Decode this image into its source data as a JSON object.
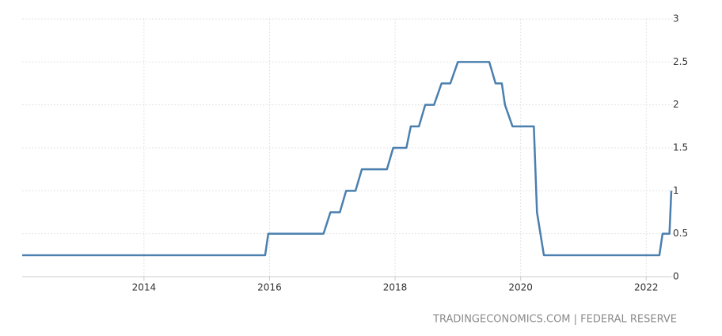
{
  "chart_data": {
    "type": "line",
    "source": "TRADINGECONOMICS.COM | FEDERAL RESERVE",
    "x": [
      2012.06,
      2015.93,
      2015.98,
      2016.86,
      2016.97,
      2017.12,
      2017.22,
      2017.37,
      2017.47,
      2017.87,
      2017.97,
      2018.18,
      2018.25,
      2018.38,
      2018.48,
      2018.62,
      2018.74,
      2018.88,
      2019.0,
      2019.5,
      2019.6,
      2019.7,
      2019.75,
      2019.87,
      2020.21,
      2020.26,
      2020.37,
      2022.21,
      2022.26,
      2022.37,
      2022.4
    ],
    "values": [
      0.25,
      0.25,
      0.5,
      0.5,
      0.75,
      0.75,
      1,
      1,
      1.25,
      1.25,
      1.5,
      1.5,
      1.75,
      1.75,
      2,
      2,
      2.25,
      2.25,
      2.5,
      2.5,
      2.25,
      2.25,
      2,
      1.75,
      1.75,
      0.75,
      0.25,
      0.25,
      0.5,
      0.5,
      1
    ],
    "color": "#4a7fae",
    "xlim": [
      2012.06,
      2022.4
    ],
    "xticks": [
      2014,
      2016,
      2018,
      2020,
      2022
    ],
    "ylim": [
      0,
      3
    ],
    "yticks": [
      0,
      0.5,
      1,
      1.5,
      2,
      2.5,
      3
    ],
    "grid": true
  }
}
